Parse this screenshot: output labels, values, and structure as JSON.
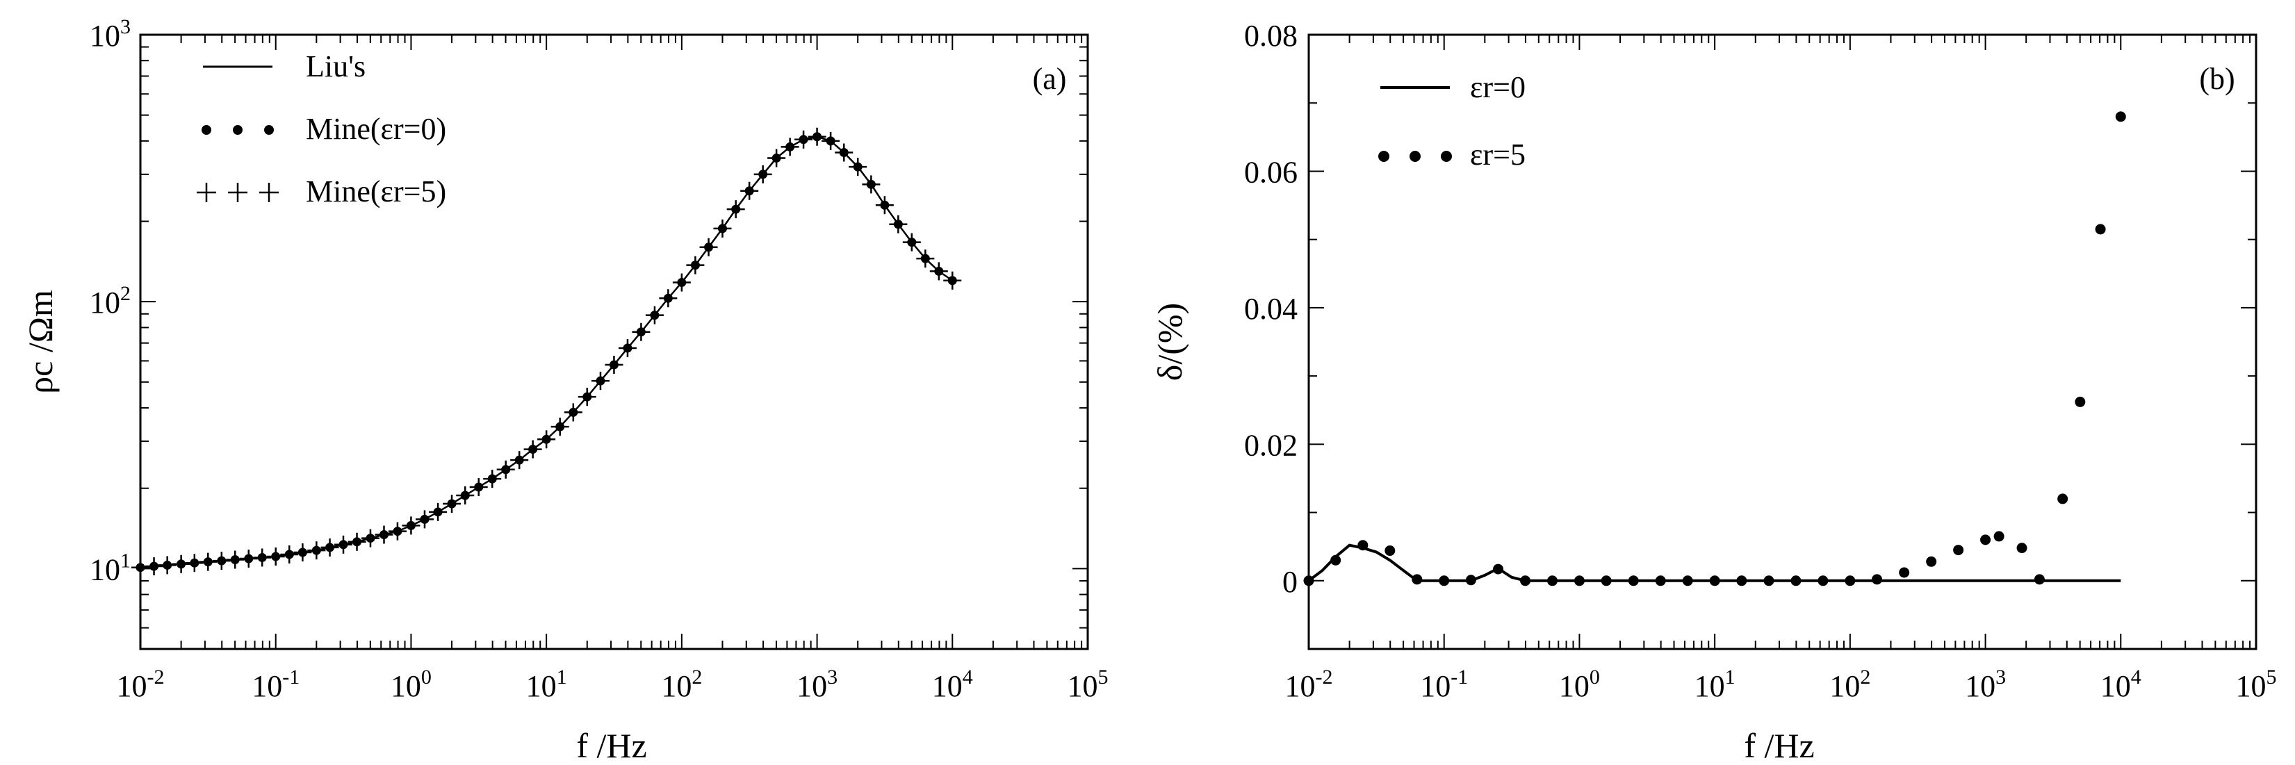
{
  "chart_data": [
    {
      "type": "line",
      "panel_label": "(a)",
      "xlabel": "f /Hz",
      "ylabel": "ρc /Ωm",
      "x_scale": "log",
      "y_scale": "log",
      "xlim": [
        0.01,
        100000
      ],
      "ylim": [
        5,
        1000
      ],
      "x_tick_labels": [
        {
          "base": "10",
          "exp": "-2"
        },
        {
          "base": "10",
          "exp": "-1"
        },
        {
          "base": "10",
          "exp": "0"
        },
        {
          "base": "10",
          "exp": "1"
        },
        {
          "base": "10",
          "exp": "2"
        },
        {
          "base": "10",
          "exp": "3"
        },
        {
          "base": "10",
          "exp": "4"
        },
        {
          "base": "10",
          "exp": "5"
        }
      ],
      "y_tick_labels": [
        {
          "base": "10",
          "exp": "1"
        },
        {
          "base": "10",
          "exp": "2"
        },
        {
          "base": "10",
          "exp": "3"
        }
      ],
      "legend": {
        "placement": "top-left",
        "entries": [
          {
            "symbol": "line",
            "text": "Liu's"
          },
          {
            "symbol": "dots",
            "text": "Mine(εr=0)"
          },
          {
            "symbol": "plus",
            "text": "Mine(εr=5)"
          }
        ]
      },
      "x": [
        0.01,
        0.0126,
        0.0158,
        0.02,
        0.0251,
        0.0316,
        0.0398,
        0.0501,
        0.0631,
        0.0794,
        0.1,
        0.126,
        0.158,
        0.2,
        0.251,
        0.316,
        0.398,
        0.501,
        0.631,
        0.794,
        1,
        1.26,
        1.58,
        2,
        2.51,
        3.16,
        3.98,
        5.01,
        6.31,
        7.94,
        10,
        12.6,
        15.8,
        20,
        25.1,
        31.6,
        39.8,
        50.1,
        63.1,
        79.4,
        100,
        126,
        158,
        200,
        251,
        316,
        398,
        501,
        631,
        794,
        1000,
        1260,
        1580,
        2000,
        2510,
        3160,
        3980,
        5010,
        6310,
        7940,
        10000
      ],
      "series": [
        {
          "name": "Liu's",
          "style": "line",
          "values": [
            10.1,
            10.2,
            10.3,
            10.4,
            10.5,
            10.6,
            10.7,
            10.8,
            10.9,
            11.0,
            11.1,
            11.3,
            11.5,
            11.7,
            12.0,
            12.3,
            12.6,
            13.0,
            13.4,
            13.8,
            14.5,
            15.3,
            16.3,
            17.5,
            18.8,
            20.2,
            21.7,
            23.5,
            25.5,
            28.0,
            30.5,
            34.0,
            38.5,
            44.0,
            50.5,
            58.0,
            67.0,
            77.0,
            89.0,
            103.0,
            118.0,
            137.0,
            160.0,
            188.0,
            222.0,
            260.0,
            300.0,
            345.0,
            380.0,
            405.0,
            415.0,
            400.0,
            362.0,
            320.0,
            275.0,
            230.0,
            195.0,
            167.0,
            145.0,
            130.0,
            120.0
          ]
        },
        {
          "name": "Mine(εr=0)",
          "style": "dots",
          "values": [
            10.1,
            10.2,
            10.3,
            10.4,
            10.5,
            10.6,
            10.7,
            10.8,
            10.9,
            11.0,
            11.1,
            11.3,
            11.5,
            11.7,
            12.0,
            12.3,
            12.6,
            13.0,
            13.4,
            13.8,
            14.5,
            15.3,
            16.3,
            17.5,
            18.8,
            20.2,
            21.7,
            23.5,
            25.5,
            28.0,
            30.5,
            34.0,
            38.5,
            44.0,
            50.5,
            58.0,
            67.0,
            77.0,
            89.0,
            103.0,
            118.0,
            137.0,
            160.0,
            188.0,
            222.0,
            260.0,
            300.0,
            345.0,
            380.0,
            405.0,
            415.0,
            400.0,
            362.0,
            320.0,
            275.0,
            230.0,
            195.0,
            167.0,
            145.0,
            130.0,
            120.0
          ]
        },
        {
          "name": "Mine(εr=5)",
          "style": "plus",
          "values": [
            10.1,
            10.2,
            10.3,
            10.4,
            10.5,
            10.6,
            10.7,
            10.8,
            10.9,
            11.0,
            11.1,
            11.3,
            11.5,
            11.7,
            12.0,
            12.3,
            12.6,
            13.0,
            13.4,
            13.8,
            14.5,
            15.3,
            16.3,
            17.5,
            18.8,
            20.2,
            21.7,
            23.5,
            25.5,
            28.0,
            30.5,
            34.0,
            38.5,
            44.0,
            50.5,
            58.0,
            67.0,
            77.0,
            89.0,
            103.0,
            118.0,
            137.0,
            160.0,
            188.0,
            222.0,
            260.0,
            300.0,
            345.0,
            380.0,
            405.0,
            415.0,
            400.0,
            362.0,
            320.0,
            275.0,
            230.0,
            195.0,
            167.0,
            145.0,
            130.0,
            120.0
          ]
        }
      ],
      "grid": false
    },
    {
      "type": "line",
      "panel_label": "(b)",
      "xlabel": "f /Hz",
      "ylabel": "δ/(%)",
      "x_scale": "log",
      "y_scale": "linear",
      "xlim": [
        0.01,
        100000
      ],
      "ylim": [
        -0.01,
        0.08
      ],
      "x_tick_labels": [
        {
          "base": "10",
          "exp": "-2"
        },
        {
          "base": "10",
          "exp": "-1"
        },
        {
          "base": "10",
          "exp": "0"
        },
        {
          "base": "10",
          "exp": "1"
        },
        {
          "base": "10",
          "exp": "2"
        },
        {
          "base": "10",
          "exp": "3"
        },
        {
          "base": "10",
          "exp": "4"
        },
        {
          "base": "10",
          "exp": "5"
        }
      ],
      "y_ticks": [
        0,
        0.02,
        0.04,
        0.06,
        0.08
      ],
      "y_tick_labels": [
        "0",
        "0.02",
        "0.04",
        "0.06",
        "0.08"
      ],
      "legend": {
        "placement": "top-left",
        "entries": [
          {
            "symbol": "line",
            "text": "εr=0"
          },
          {
            "symbol": "dots",
            "text": "εr=5"
          }
        ]
      },
      "series": [
        {
          "name": "εr=0",
          "style": "line",
          "x": [
            0.01,
            0.0126,
            0.0158,
            0.02,
            0.0251,
            0.0316,
            0.0398,
            0.0501,
            0.0631,
            0.0794,
            0.1,
            0.126,
            0.158,
            0.2,
            0.251,
            0.316,
            0.398,
            10000
          ],
          "values": [
            0,
            0.0015,
            0.0035,
            0.0052,
            0.0048,
            0.0042,
            0.003,
            0.0015,
            0,
            0,
            0,
            0,
            0,
            0.0008,
            0.0018,
            0.0005,
            0,
            0
          ]
        },
        {
          "name": "εr=5",
          "style": "dots",
          "x": [
            0.01,
            0.0158,
            0.0251,
            0.0398,
            0.0631,
            0.1,
            0.158,
            0.251,
            0.398,
            0.631,
            1,
            1.58,
            2.51,
            3.98,
            6.31,
            10,
            15.8,
            25.1,
            39.8,
            63.1,
            100,
            158,
            251,
            398,
            631,
            1000,
            1260,
            1860,
            2510,
            3720,
            5010,
            7080,
            10000
          ],
          "values": [
            0,
            0.003,
            0.0052,
            0.0044,
            0.0002,
            0,
            0.0001,
            0.0017,
            0,
            0,
            0,
            0,
            0,
            0,
            0,
            0,
            0,
            0,
            0,
            0,
            0,
            0.0002,
            0.0012,
            0.0028,
            0.0045,
            0.006,
            0.0065,
            0.0048,
            0.0002,
            0.012,
            0.0262,
            0.0515,
            0.068
          ]
        }
      ],
      "grid": false
    }
  ]
}
